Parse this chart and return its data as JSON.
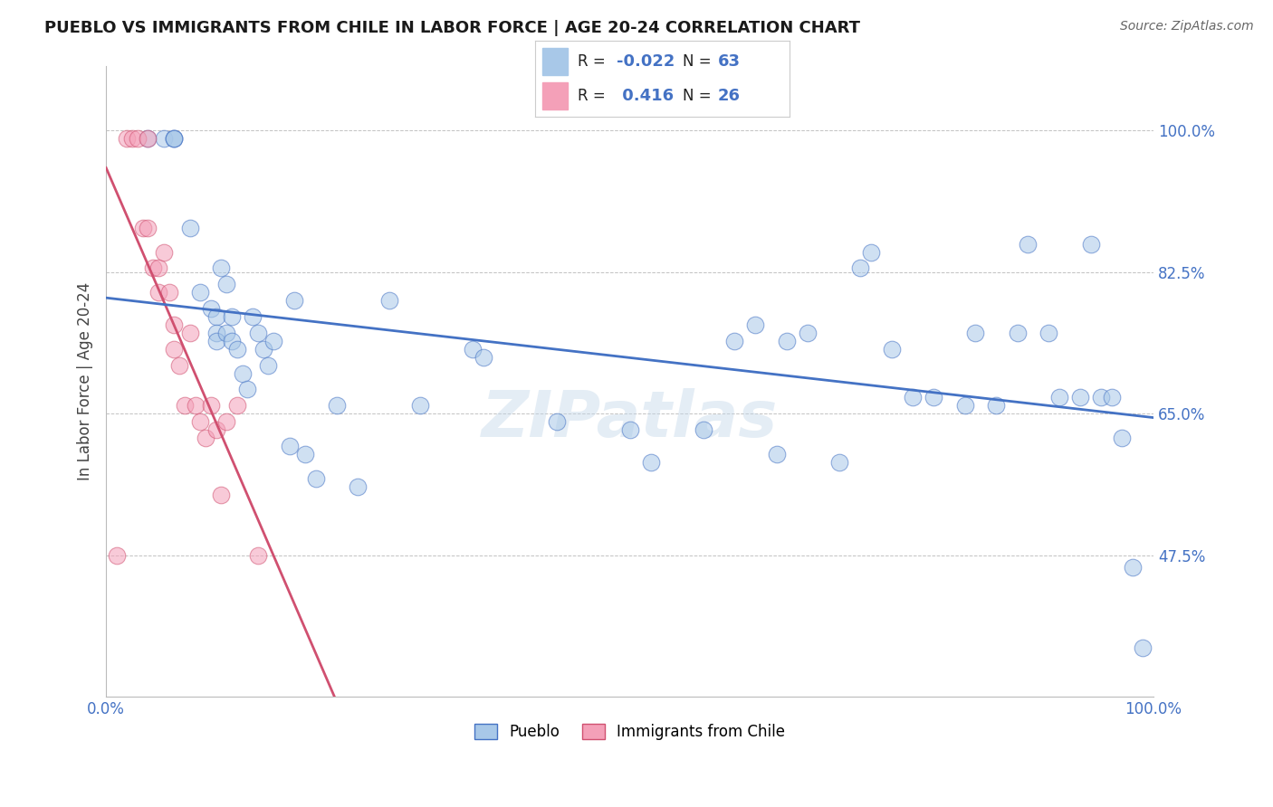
{
  "title": "PUEBLO VS IMMIGRANTS FROM CHILE IN LABOR FORCE | AGE 20-24 CORRELATION CHART",
  "source": "Source: ZipAtlas.com",
  "ylabel": "In Labor Force | Age 20-24",
  "xlim": [
    0.0,
    1.0
  ],
  "ylim": [
    0.3,
    1.08
  ],
  "yticks": [
    0.475,
    0.65,
    0.825,
    1.0
  ],
  "ytick_labels": [
    "47.5%",
    "65.0%",
    "82.5%",
    "100.0%"
  ],
  "xtick_labels": [
    "0.0%",
    "100.0%"
  ],
  "xticks": [
    0.0,
    1.0
  ],
  "pueblo_color": "#a8c8e8",
  "chile_color": "#f4a0b8",
  "pueblo_line_color": "#4472c4",
  "chile_line_color": "#d05070",
  "pueblo_R": "-0.022",
  "pueblo_N": "63",
  "chile_R": "0.416",
  "chile_N": "26",
  "background_color": "#ffffff",
  "grid_color": "#bbbbbb",
  "watermark": "ZIPatlas",
  "pueblo_x": [
    0.04,
    0.055,
    0.065,
    0.065,
    0.065,
    0.08,
    0.09,
    0.1,
    0.105,
    0.105,
    0.105,
    0.11,
    0.115,
    0.115,
    0.12,
    0.12,
    0.125,
    0.13,
    0.135,
    0.14,
    0.145,
    0.15,
    0.155,
    0.16,
    0.175,
    0.18,
    0.19,
    0.2,
    0.22,
    0.24,
    0.27,
    0.3,
    0.35,
    0.36,
    0.43,
    0.5,
    0.52,
    0.57,
    0.6,
    0.62,
    0.64,
    0.65,
    0.67,
    0.7,
    0.72,
    0.73,
    0.75,
    0.77,
    0.79,
    0.82,
    0.83,
    0.85,
    0.87,
    0.88,
    0.9,
    0.91,
    0.93,
    0.94,
    0.95,
    0.96,
    0.97,
    0.98,
    0.99
  ],
  "pueblo_y": [
    0.99,
    0.99,
    0.99,
    0.99,
    0.99,
    0.88,
    0.8,
    0.78,
    0.77,
    0.75,
    0.74,
    0.83,
    0.81,
    0.75,
    0.77,
    0.74,
    0.73,
    0.7,
    0.68,
    0.77,
    0.75,
    0.73,
    0.71,
    0.74,
    0.61,
    0.79,
    0.6,
    0.57,
    0.66,
    0.56,
    0.79,
    0.66,
    0.73,
    0.72,
    0.64,
    0.63,
    0.59,
    0.63,
    0.74,
    0.76,
    0.6,
    0.74,
    0.75,
    0.59,
    0.83,
    0.85,
    0.73,
    0.67,
    0.67,
    0.66,
    0.75,
    0.66,
    0.75,
    0.86,
    0.75,
    0.67,
    0.67,
    0.86,
    0.67,
    0.67,
    0.62,
    0.46,
    0.36
  ],
  "chile_x": [
    0.01,
    0.02,
    0.025,
    0.03,
    0.035,
    0.04,
    0.04,
    0.045,
    0.05,
    0.05,
    0.055,
    0.06,
    0.065,
    0.065,
    0.07,
    0.075,
    0.08,
    0.085,
    0.09,
    0.095,
    0.1,
    0.105,
    0.11,
    0.115,
    0.125,
    0.145
  ],
  "chile_y": [
    0.475,
    0.99,
    0.99,
    0.99,
    0.88,
    0.99,
    0.88,
    0.83,
    0.83,
    0.8,
    0.85,
    0.8,
    0.76,
    0.73,
    0.71,
    0.66,
    0.75,
    0.66,
    0.64,
    0.62,
    0.66,
    0.63,
    0.55,
    0.64,
    0.66,
    0.475
  ]
}
